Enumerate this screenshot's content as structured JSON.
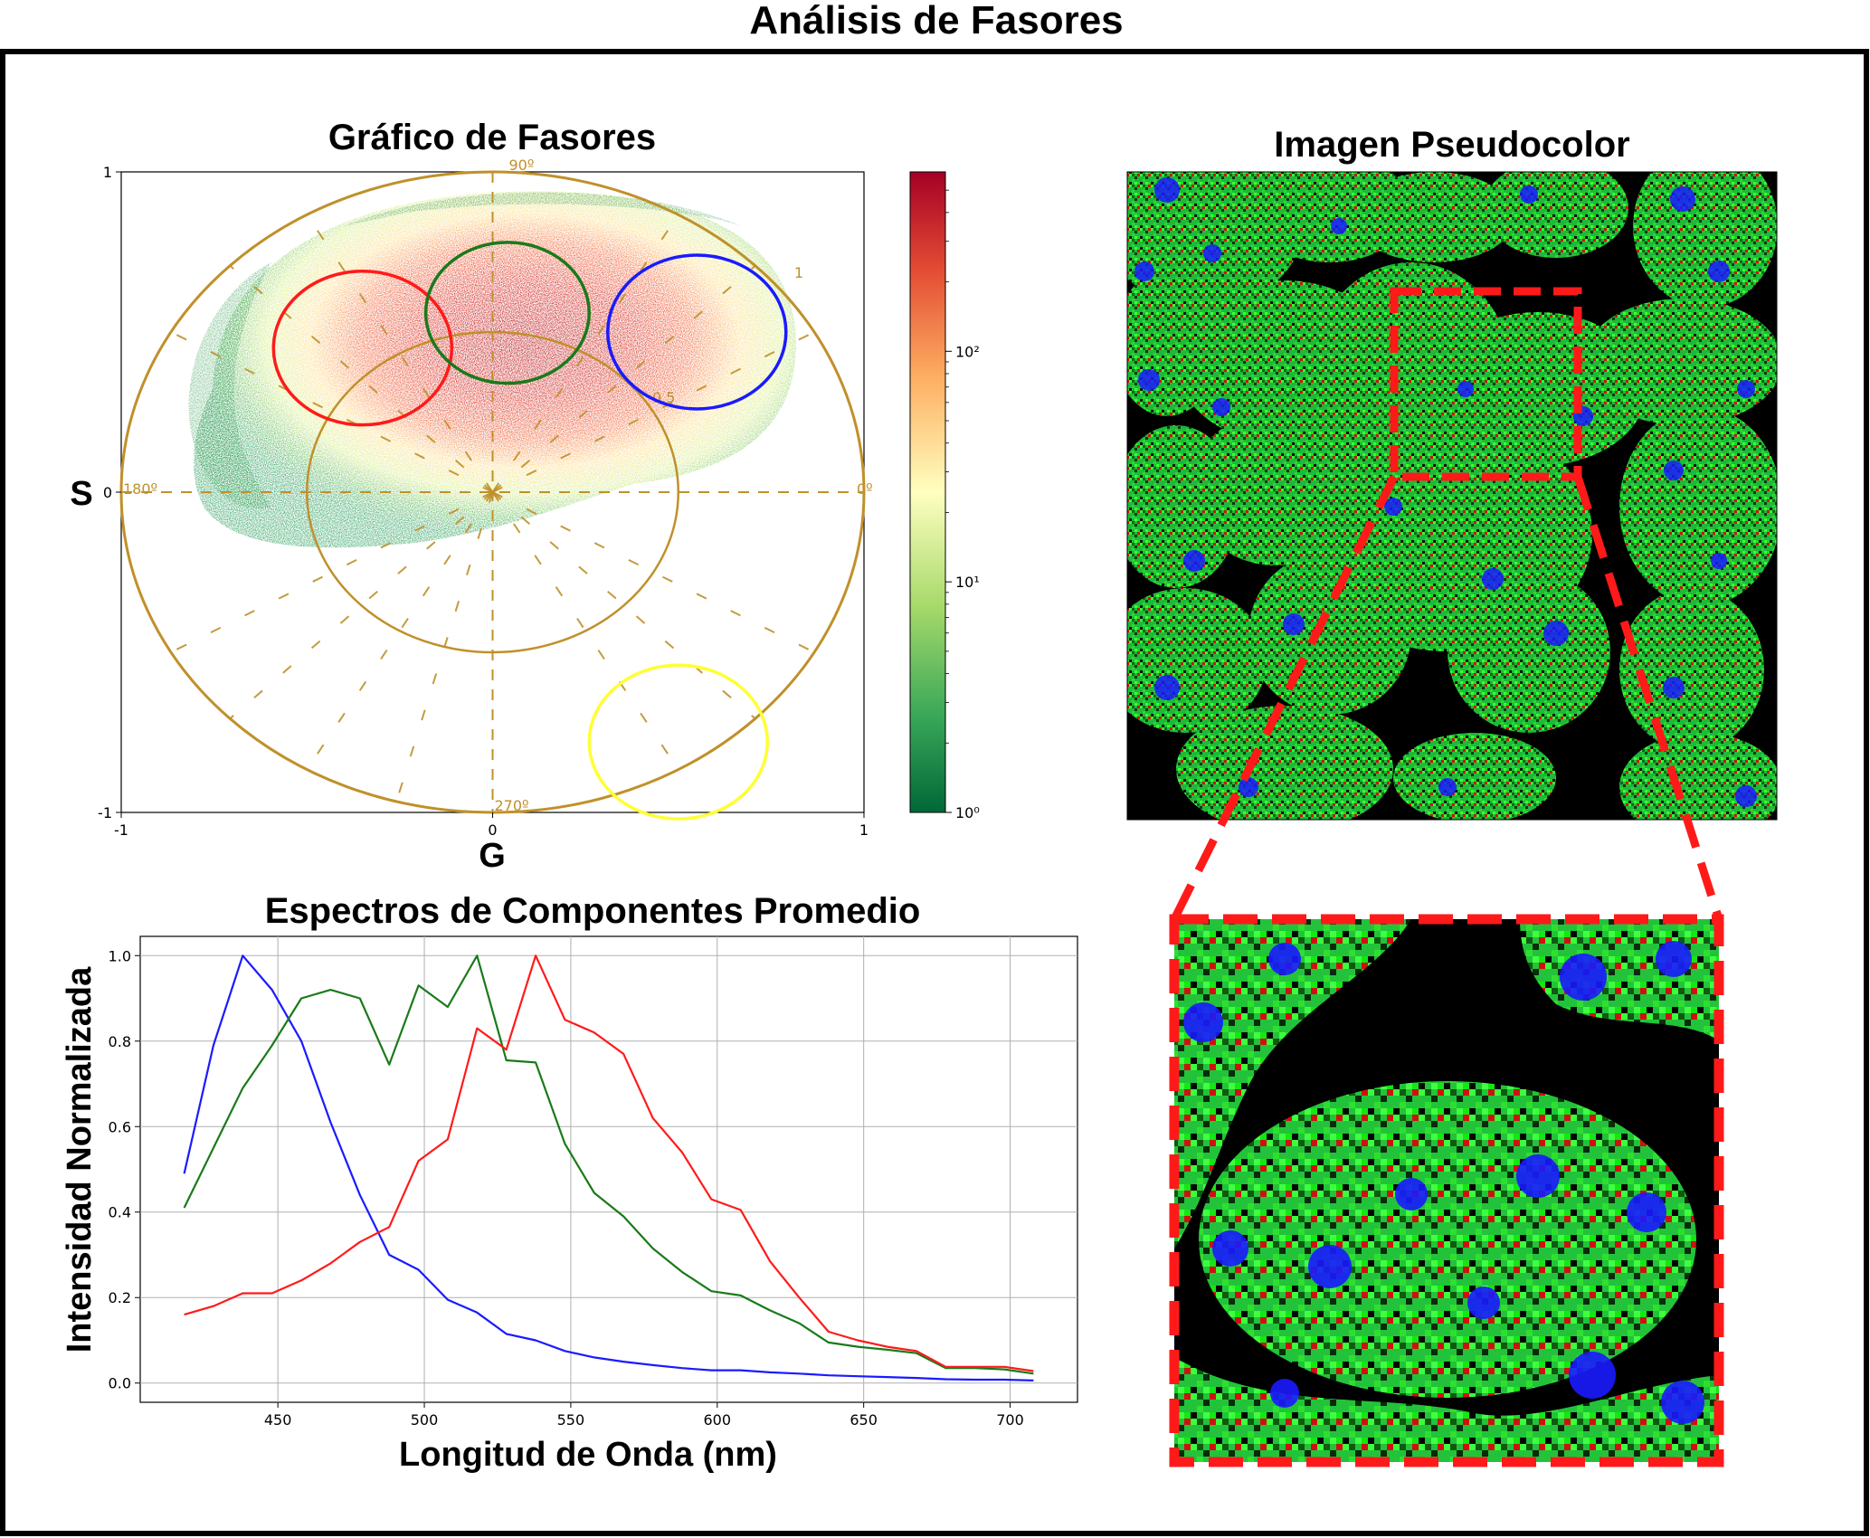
{
  "figure": {
    "title": "Análisis de Fasores"
  },
  "colors": {
    "polar": "#c0902a",
    "red": "#ff1a1a",
    "green": "#1a7a1a",
    "blue": "#1a1aff",
    "yellow": "#ffff33",
    "zoom_frame": "#ff1a1a"
  },
  "chart_data": [
    {
      "type": "heatmap",
      "title": "Gráfico de Fasores",
      "xlabel": "G",
      "ylabel": "S",
      "xlim": [
        -1,
        1
      ],
      "ylim": [
        -1,
        1
      ],
      "xticks": [
        "-1",
        "0",
        "1"
      ],
      "yticks": [
        "1",
        "0",
        "-1"
      ],
      "grid": false,
      "polar_labels": {
        "deg90": "90º",
        "deg180": "180º",
        "deg0": "0º",
        "deg270": "270º",
        "mod1": "1",
        "mod05": "0.5"
      },
      "colorbar": {
        "scale": "log",
        "ticks": [
          "10⁰",
          "10¹",
          "10²"
        ]
      },
      "cursors": [
        {
          "color": "red",
          "g": -0.35,
          "s": 0.45,
          "r": 0.24
        },
        {
          "color": "green",
          "g": 0.04,
          "s": 0.56,
          "r": 0.22
        },
        {
          "color": "blue",
          "g": 0.55,
          "s": 0.5,
          "r": 0.24
        },
        {
          "color": "yellow",
          "g": 0.5,
          "s": -0.78,
          "r": 0.24
        }
      ]
    },
    {
      "type": "line",
      "title": "Espectros de Componentes Promedio",
      "xlabel": "Longitud de Onda (nm)",
      "ylabel": "Intensidad Normalizada",
      "xlim": [
        403,
        723
      ],
      "ylim": [
        -0.045,
        1.045
      ],
      "xticks": [
        450,
        500,
        550,
        600,
        650,
        700
      ],
      "yticks": [
        "0.0",
        "0.2",
        "0.4",
        "0.6",
        "0.8",
        "1.0"
      ],
      "grid": true,
      "x": [
        418,
        428,
        438,
        448,
        458,
        468,
        478,
        488,
        498,
        508,
        518,
        528,
        538,
        548,
        558,
        568,
        578,
        588,
        598,
        608,
        618,
        628,
        638,
        648,
        658,
        668,
        678,
        688,
        698,
        708
      ],
      "series": [
        {
          "color": "blue",
          "values": [
            0.49,
            0.79,
            1.0,
            0.92,
            0.8,
            0.61,
            0.44,
            0.3,
            0.265,
            0.195,
            0.165,
            0.115,
            0.1,
            0.075,
            0.06,
            0.05,
            0.042,
            0.035,
            0.03,
            0.03,
            0.025,
            0.022,
            0.018,
            0.016,
            0.014,
            0.012,
            0.009,
            0.008,
            0.008,
            0.006
          ]
        },
        {
          "color": "green",
          "values": [
            0.41,
            0.55,
            0.69,
            0.79,
            0.9,
            0.92,
            0.9,
            0.745,
            0.93,
            0.88,
            1.0,
            0.755,
            0.75,
            0.56,
            0.445,
            0.39,
            0.315,
            0.26,
            0.215,
            0.205,
            0.17,
            0.14,
            0.095,
            0.085,
            0.078,
            0.07,
            0.035,
            0.035,
            0.032,
            0.022
          ]
        },
        {
          "color": "red",
          "values": [
            0.16,
            0.18,
            0.21,
            0.21,
            0.24,
            0.28,
            0.33,
            0.365,
            0.52,
            0.57,
            0.83,
            0.78,
            1.0,
            0.85,
            0.82,
            0.77,
            0.62,
            0.54,
            0.43,
            0.405,
            0.285,
            0.2,
            0.12,
            0.1,
            0.085,
            0.075,
            0.038,
            0.038,
            0.038,
            0.028
          ]
        }
      ]
    }
  ],
  "pseudocolor": {
    "title": "Imagen Pseudocolor"
  }
}
